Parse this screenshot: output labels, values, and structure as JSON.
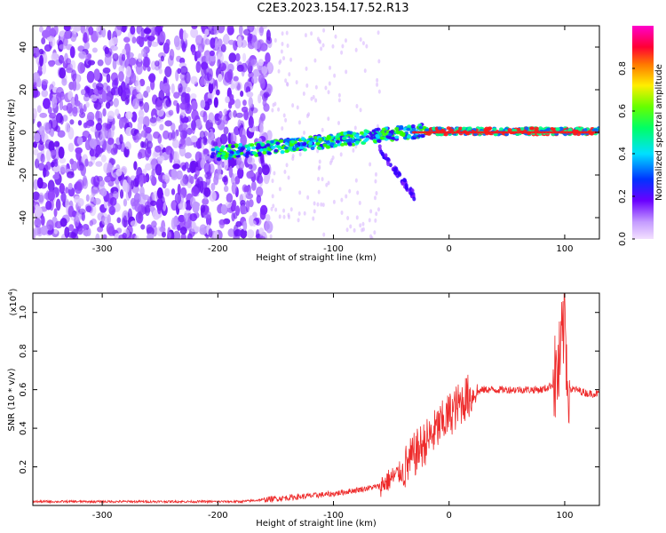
{
  "title": "C2E3.2023.154.17.52.R13",
  "colors": {
    "spectro_high": "#ff1a1a",
    "snr_line": "#ee2b2b",
    "spectro_low": "#d9b8ff"
  },
  "chart_data": [
    {
      "type": "heatmap",
      "xlabel": "Height of straight line (km)",
      "ylabel": "Frequency (Hz)",
      "xlim": [
        -360,
        130
      ],
      "ylim": [
        -50,
        50
      ],
      "xticks": [
        -300,
        -200,
        -100,
        0,
        100
      ],
      "yticks": [
        -40,
        -20,
        0,
        20,
        40
      ],
      "colorbar": {
        "label": "Normalized spectral amplitude",
        "range": [
          0.0,
          1.0
        ],
        "ticks": [
          0.0,
          0.2,
          0.4,
          0.6,
          0.8
        ],
        "tick_labels": [
          "0.0",
          "0.2",
          "0.4",
          "0.6",
          "0.8"
        ],
        "colormap": "rainbow (purple-blue-cyan-green-yellow-red-magenta)"
      },
      "grid": false
    },
    {
      "type": "line",
      "xlabel": "Height of straight line (km)",
      "ylabel": "SNR (10 * v/v)",
      "multiplier_label": "(x10",
      "multiplier_exp": "4",
      "multiplier_close": ")",
      "xlim": [
        -360,
        130
      ],
      "ylim": [
        0,
        1.1
      ],
      "xticks": [
        -300,
        -200,
        -100,
        0,
        100
      ],
      "yticks": [
        0.2,
        0.4,
        0.6,
        0.8,
        1.0
      ],
      "ytick_labels": [
        "0.2",
        "0.4",
        "0.6",
        "0.8",
        "1.0"
      ],
      "grid": false,
      "series": [
        {
          "x": [
            -360,
            -300,
            -250,
            -200,
            -180,
            -160,
            -140,
            -120,
            -100,
            -80,
            -60,
            -50,
            -40,
            -35,
            -30,
            -25,
            -20,
            -15,
            -10,
            -5,
            0,
            5,
            10,
            15,
            20,
            25,
            30,
            35,
            40,
            50,
            60,
            70,
            80,
            85,
            90,
            95,
            98,
            100,
            102,
            105,
            110,
            120,
            130
          ],
          "y": [
            0.02,
            0.02,
            0.02,
            0.02,
            0.02,
            0.03,
            0.04,
            0.05,
            0.06,
            0.08,
            0.1,
            0.14,
            0.18,
            0.22,
            0.26,
            0.3,
            0.33,
            0.36,
            0.4,
            0.43,
            0.47,
            0.5,
            0.53,
            0.56,
            0.57,
            0.59,
            0.6,
            0.6,
            0.6,
            0.6,
            0.6,
            0.6,
            0.6,
            0.61,
            0.63,
            0.7,
            0.85,
            1.02,
            0.7,
            0.6,
            0.6,
            0.58,
            0.58
          ]
        }
      ]
    }
  ]
}
